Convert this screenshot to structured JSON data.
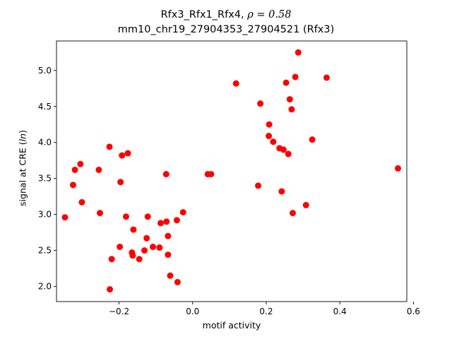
{
  "chart_data": {
    "type": "scatter",
    "title_prefix": "Rfx3_Rfx1_Rfx4, ",
    "title_rho": "ρ = 0.58",
    "subtitle": "mm10_chr19_27904353_27904521 (Rfx3)",
    "xlabel": "motif activity",
    "ylabel_prefix": "signal at CRE (",
    "ylabel_ln": "ln",
    "ylabel_suffix": ")",
    "xlim": [
      -0.37,
      0.582
    ],
    "ylim": [
      1.79,
      5.41
    ],
    "xticks": [
      -0.2,
      0.0,
      0.2,
      0.4,
      0.6
    ],
    "xtick_labels": [
      "−0.2",
      "0.0",
      "0.2",
      "0.4",
      "0.6"
    ],
    "yticks": [
      2.0,
      2.5,
      3.0,
      3.5,
      4.0,
      4.5,
      5.0
    ],
    "ytick_labels": [
      "2.0",
      "2.5",
      "3.0",
      "3.5",
      "4.0",
      "4.5",
      "5.0"
    ],
    "grid": false,
    "marker_color": "#ff0000",
    "points": [
      {
        "x": -0.347,
        "y": 2.96
      },
      {
        "x": -0.325,
        "y": 3.41
      },
      {
        "x": -0.32,
        "y": 3.62
      },
      {
        "x": -0.305,
        "y": 3.7
      },
      {
        "x": -0.301,
        "y": 3.17
      },
      {
        "x": -0.255,
        "y": 3.62
      },
      {
        "x": -0.252,
        "y": 3.02
      },
      {
        "x": -0.226,
        "y": 3.94
      },
      {
        "x": -0.225,
        "y": 1.96
      },
      {
        "x": -0.22,
        "y": 2.38
      },
      {
        "x": -0.198,
        "y": 2.55
      },
      {
        "x": -0.196,
        "y": 3.45
      },
      {
        "x": -0.192,
        "y": 3.82
      },
      {
        "x": -0.181,
        "y": 2.97
      },
      {
        "x": -0.176,
        "y": 3.85
      },
      {
        "x": -0.165,
        "y": 2.47
      },
      {
        "x": -0.163,
        "y": 2.43
      },
      {
        "x": -0.161,
        "y": 2.79
      },
      {
        "x": -0.145,
        "y": 2.38
      },
      {
        "x": -0.131,
        "y": 2.5
      },
      {
        "x": -0.125,
        "y": 2.67
      },
      {
        "x": -0.122,
        "y": 2.97
      },
      {
        "x": -0.108,
        "y": 2.55
      },
      {
        "x": -0.09,
        "y": 2.54
      },
      {
        "x": -0.087,
        "y": 2.88
      },
      {
        "x": -0.072,
        "y": 3.56
      },
      {
        "x": -0.071,
        "y": 2.9
      },
      {
        "x": -0.067,
        "y": 2.7
      },
      {
        "x": -0.067,
        "y": 2.44
      },
      {
        "x": -0.061,
        "y": 2.15
      },
      {
        "x": -0.043,
        "y": 2.92
      },
      {
        "x": -0.041,
        "y": 2.06
      },
      {
        "x": -0.026,
        "y": 3.03
      },
      {
        "x": 0.041,
        "y": 3.56
      },
      {
        "x": 0.05,
        "y": 3.56
      },
      {
        "x": 0.118,
        "y": 4.82
      },
      {
        "x": 0.178,
        "y": 3.4
      },
      {
        "x": 0.184,
        "y": 4.54
      },
      {
        "x": 0.207,
        "y": 4.09
      },
      {
        "x": 0.208,
        "y": 4.25
      },
      {
        "x": 0.219,
        "y": 4.01
      },
      {
        "x": 0.236,
        "y": 3.92
      },
      {
        "x": 0.242,
        "y": 3.32
      },
      {
        "x": 0.247,
        "y": 3.9
      },
      {
        "x": 0.254,
        "y": 4.83
      },
      {
        "x": 0.26,
        "y": 3.84
      },
      {
        "x": 0.264,
        "y": 4.6
      },
      {
        "x": 0.269,
        "y": 4.46
      },
      {
        "x": 0.272,
        "y": 3.02
      },
      {
        "x": 0.279,
        "y": 4.91
      },
      {
        "x": 0.287,
        "y": 5.25
      },
      {
        "x": 0.308,
        "y": 3.13
      },
      {
        "x": 0.325,
        "y": 4.04
      },
      {
        "x": 0.364,
        "y": 4.9
      },
      {
        "x": 0.558,
        "y": 3.64
      }
    ]
  }
}
